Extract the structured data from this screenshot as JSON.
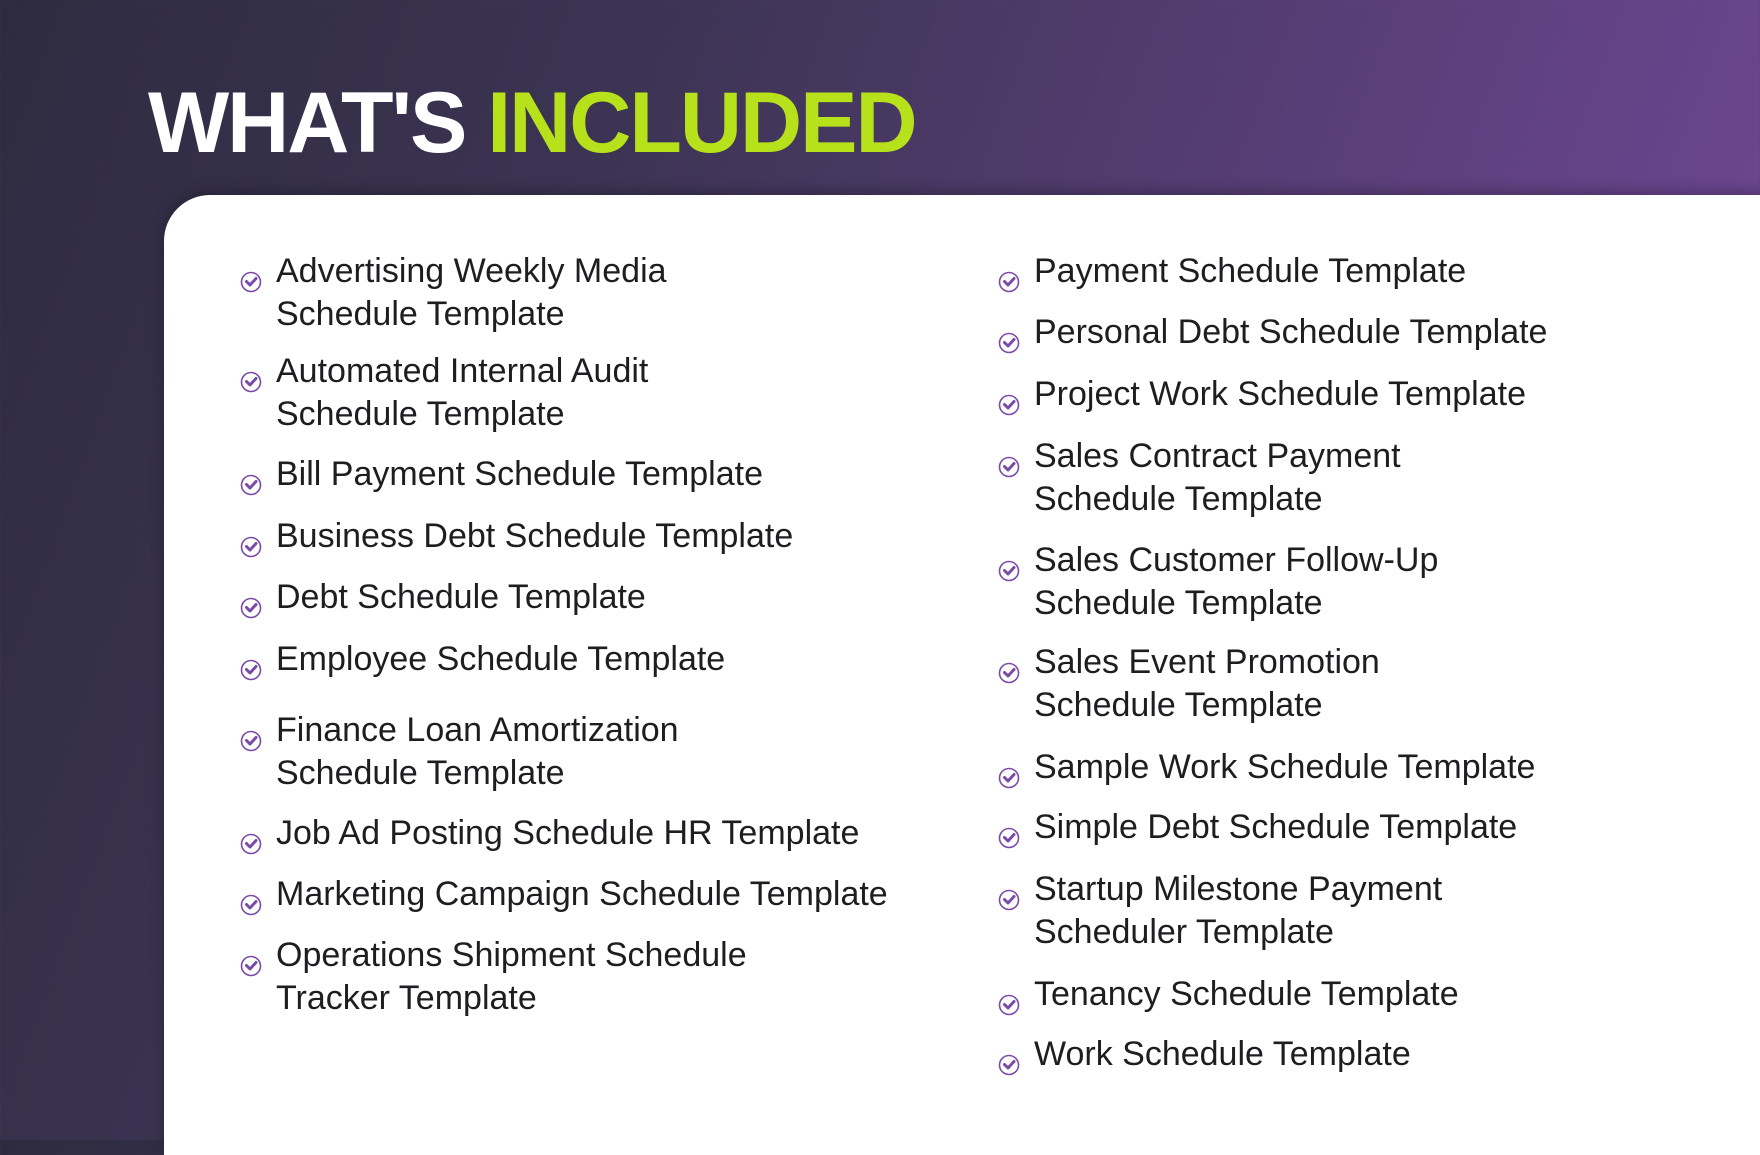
{
  "header": {
    "title_white": "WHAT'S",
    "title_accent": "INCLUDED"
  },
  "colors": {
    "accent": "#b7e11b",
    "check": "#7a4aa8",
    "text": "#1e1e22"
  },
  "icon": "check-circle-icon",
  "left_items": [
    {
      "label": "Advertising Weekly Media\nSchedule Template"
    },
    {
      "label": "Automated Internal Audit\nSchedule Template"
    },
    {
      "label": "Bill Payment Schedule Template"
    },
    {
      "label": "Business Debt Schedule Template"
    },
    {
      "label": "Debt Schedule Template"
    },
    {
      "label": "Employee Schedule Template"
    },
    {
      "label": "Finance Loan Amortization\nSchedule Template"
    },
    {
      "label": "Job Ad Posting Schedule HR Template"
    },
    {
      "label": "Marketing Campaign Schedule Template"
    },
    {
      "label": "Operations Shipment Schedule\nTracker Template"
    }
  ],
  "right_items": [
    {
      "label": "Payment Schedule Template"
    },
    {
      "label": "Personal Debt Schedule Template"
    },
    {
      "label": "Project Work Schedule Template"
    },
    {
      "label": "Sales Contract Payment\nSchedule Template"
    },
    {
      "label": "Sales Customer Follow-Up\nSchedule Template"
    },
    {
      "label": "Sales Event Promotion\nSchedule Template"
    },
    {
      "label": "Sample Work Schedule Template"
    },
    {
      "label": "Simple Debt Schedule Template"
    },
    {
      "label": "Startup Milestone Payment\nScheduler Template"
    },
    {
      "label": "Tenancy Schedule Template"
    },
    {
      "label": "Work Schedule Template"
    }
  ]
}
